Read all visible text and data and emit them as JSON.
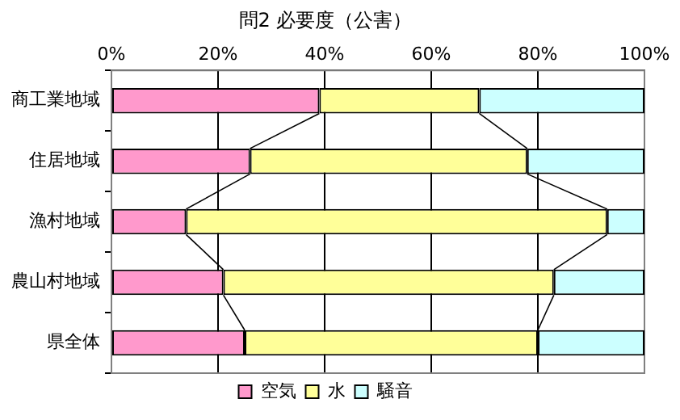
{
  "chart_data": {
    "type": "bar",
    "title": "問2 必要度（公害）",
    "orientation": "horizontal",
    "stacked": true,
    "categories": [
      "商工業地域",
      "住居地域",
      "漁村地域",
      "農山村地域",
      "県全体"
    ],
    "series": [
      {
        "name": "空気",
        "color": "#ff99cc",
        "values": [
          39,
          26,
          14,
          21,
          25
        ]
      },
      {
        "name": "水",
        "color": "#ffff99",
        "values": [
          30,
          52,
          79,
          62,
          55
        ]
      },
      {
        "name": "騒音",
        "color": "#ccffff",
        "values": [
          31,
          22,
          7,
          17,
          20
        ]
      }
    ],
    "xlim": [
      0,
      100
    ],
    "xticks": [
      {
        "value": 0,
        "label": "0%"
      },
      {
        "value": 20,
        "label": "20%"
      },
      {
        "value": 40,
        "label": "40%"
      },
      {
        "value": 60,
        "label": "60%"
      },
      {
        "value": 80,
        "label": "80%"
      },
      {
        "value": 100,
        "label": "100%"
      }
    ],
    "grid": "x",
    "legend": "bottom"
  }
}
